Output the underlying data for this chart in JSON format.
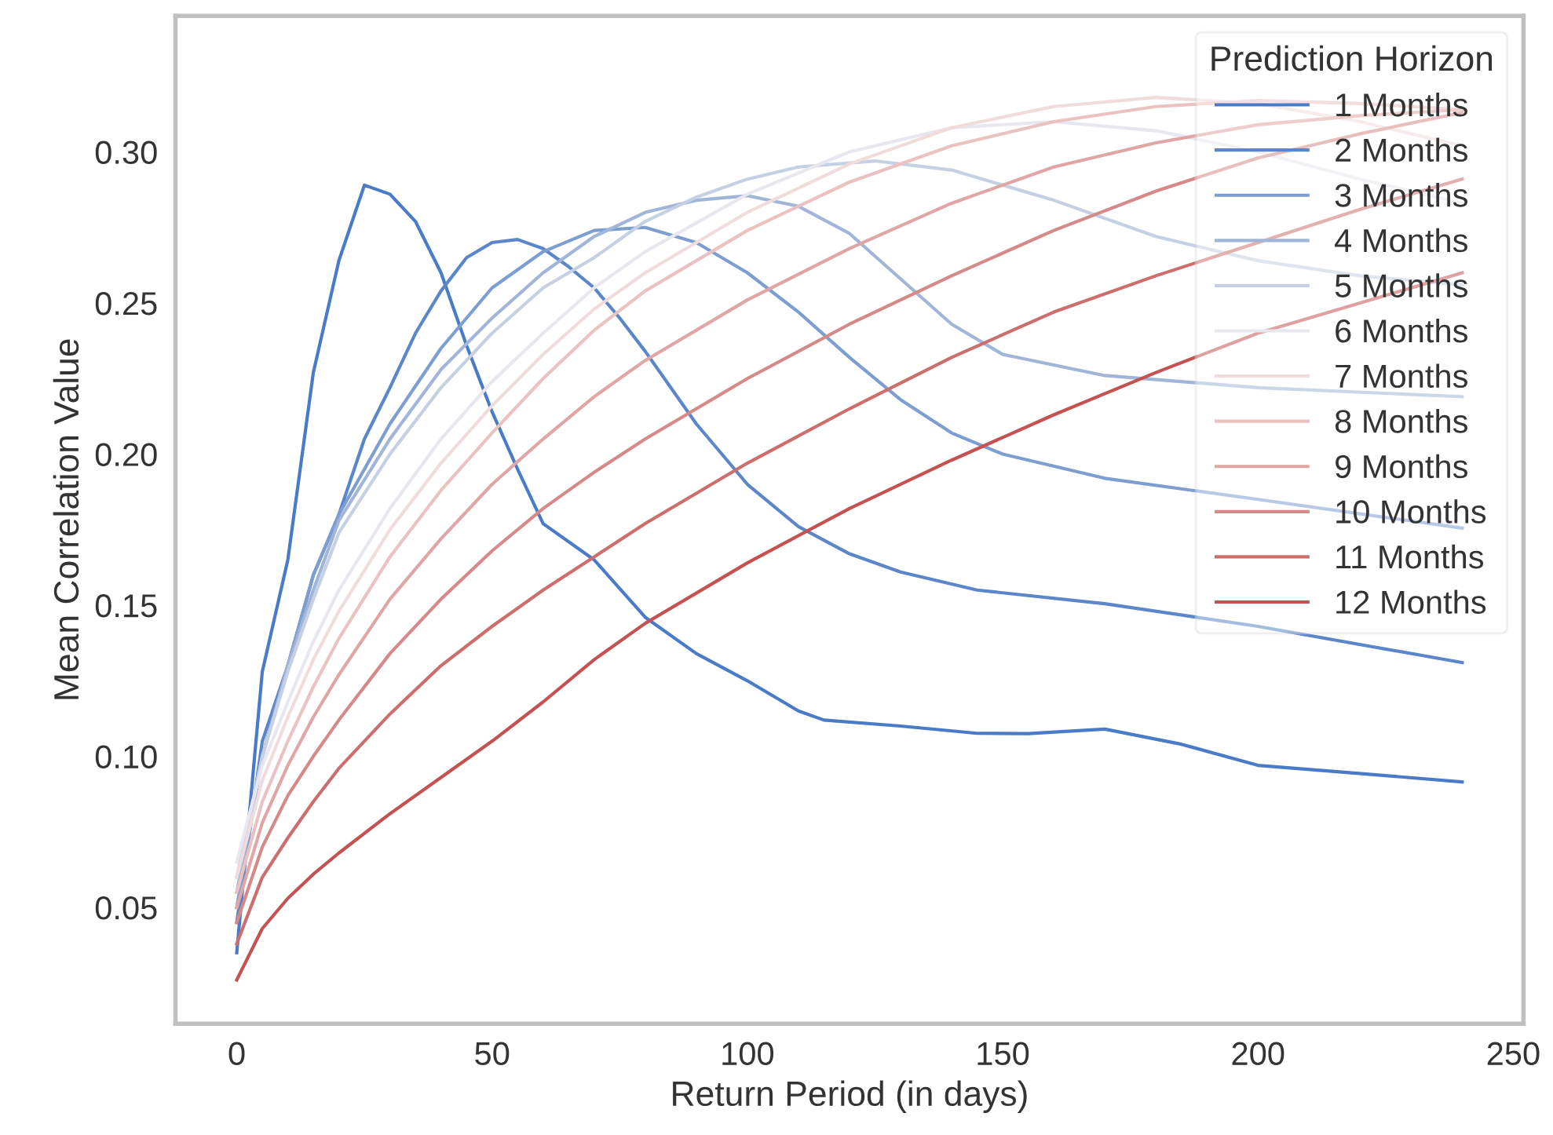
{
  "chart_data": {
    "type": "line",
    "xlabel": "Return Period (in days)",
    "ylabel": "Mean Correlation Value",
    "legend_title": "Prediction Horizon",
    "legend": "top right",
    "grid": false,
    "xlim": [
      -12,
      252
    ],
    "ylim": [
      0.0115,
      0.345
    ],
    "xticks": [
      0,
      50,
      100,
      150,
      200,
      250
    ],
    "yticks": [
      {
        "value": 0.05,
        "label": "0.05"
      },
      {
        "value": 0.1,
        "label": "0.10"
      },
      {
        "value": 0.15,
        "label": "0.15"
      },
      {
        "value": 0.2,
        "label": "0.20"
      },
      {
        "value": 0.25,
        "label": "0.25"
      },
      {
        "value": 0.3,
        "label": "0.30"
      }
    ],
    "series": [
      {
        "name": "1 Months",
        "color": "#4a7bc8",
        "x": [
          0,
          5,
          10,
          15,
          20,
          25,
          30,
          35,
          40,
          45,
          50,
          55,
          60,
          70,
          80,
          90,
          100,
          110,
          115,
          130,
          145,
          155,
          170,
          185,
          200,
          215,
          240
        ],
        "values": [
          0.035,
          0.128,
          0.165,
          0.227,
          0.264,
          0.289,
          0.286,
          0.277,
          0.26,
          0.236,
          0.214,
          0.195,
          0.177,
          0.165,
          0.146,
          0.134,
          0.125,
          0.115,
          0.112,
          0.11,
          0.1076,
          0.1075,
          0.109,
          0.104,
          0.097,
          0.095,
          0.0915
        ]
      },
      {
        "name": "2 Months",
        "color": "#5b86c9",
        "x": [
          0,
          5,
          10,
          15,
          20,
          25,
          30,
          35,
          40,
          45,
          50,
          55,
          60,
          65,
          70,
          75,
          80,
          85,
          90,
          100,
          110,
          120,
          130,
          145,
          170,
          200,
          240
        ],
        "values": [
          0.045,
          0.105,
          0.13,
          0.16,
          0.18,
          0.205,
          0.222,
          0.24,
          0.254,
          0.265,
          0.27,
          0.271,
          0.268,
          0.262,
          0.255,
          0.245,
          0.234,
          0.222,
          0.21,
          0.19,
          0.176,
          0.167,
          0.161,
          0.155,
          0.1505,
          0.143,
          0.131
        ]
      },
      {
        "name": "3 Months",
        "color": "#7d9ed0",
        "x": [
          0,
          5,
          10,
          15,
          20,
          30,
          40,
          50,
          60,
          70,
          80,
          90,
          100,
          110,
          120,
          130,
          140,
          150,
          170,
          200,
          240
        ],
        "values": [
          0.05,
          0.1,
          0.13,
          0.16,
          0.18,
          0.21,
          0.235,
          0.255,
          0.267,
          0.274,
          0.275,
          0.27,
          0.26,
          0.247,
          0.232,
          0.218,
          0.207,
          0.2,
          0.192,
          0.185,
          0.1755
        ]
      },
      {
        "name": "4 Months",
        "color": "#a1b5d8",
        "x": [
          0,
          5,
          10,
          15,
          20,
          30,
          40,
          50,
          60,
          70,
          80,
          90,
          100,
          110,
          120,
          130,
          140,
          150,
          170,
          200,
          240
        ],
        "values": [
          0.055,
          0.1,
          0.13,
          0.155,
          0.178,
          0.205,
          0.228,
          0.245,
          0.26,
          0.272,
          0.28,
          0.284,
          0.2855,
          0.282,
          0.273,
          0.258,
          0.243,
          0.233,
          0.226,
          0.222,
          0.219
        ]
      },
      {
        "name": "5 Months",
        "color": "#c6d0e3",
        "x": [
          0,
          5,
          10,
          15,
          20,
          30,
          40,
          50,
          60,
          70,
          80,
          90,
          100,
          110,
          125,
          140,
          160,
          180,
          200,
          220,
          240
        ],
        "values": [
          0.06,
          0.1,
          0.128,
          0.152,
          0.174,
          0.2,
          0.222,
          0.24,
          0.255,
          0.265,
          0.277,
          0.285,
          0.291,
          0.295,
          0.297,
          0.294,
          0.284,
          0.272,
          0.264,
          0.259,
          0.256
        ]
      },
      {
        "name": "6 Months",
        "color": "#e8e6ee",
        "x": [
          0,
          5,
          10,
          15,
          20,
          30,
          40,
          50,
          60,
          70,
          80,
          100,
          120,
          140,
          160,
          180,
          200,
          220,
          240
        ],
        "values": [
          0.065,
          0.097,
          0.118,
          0.138,
          0.155,
          0.182,
          0.205,
          0.224,
          0.24,
          0.255,
          0.267,
          0.286,
          0.3,
          0.308,
          0.31,
          0.307,
          0.3,
          0.291,
          0.283
        ]
      },
      {
        "name": "7 Months",
        "color": "#f1dcdc",
        "x": [
          0,
          5,
          10,
          15,
          20,
          30,
          40,
          50,
          60,
          70,
          80,
          100,
          120,
          140,
          160,
          180,
          200,
          220,
          240
        ],
        "values": [
          0.06,
          0.092,
          0.113,
          0.132,
          0.148,
          0.175,
          0.197,
          0.216,
          0.233,
          0.248,
          0.26,
          0.28,
          0.296,
          0.308,
          0.315,
          0.318,
          0.316,
          0.31,
          0.302
        ]
      },
      {
        "name": "8 Months",
        "color": "#eac2c1",
        "x": [
          0,
          5,
          10,
          15,
          20,
          30,
          40,
          50,
          60,
          70,
          80,
          100,
          120,
          140,
          160,
          180,
          200,
          220,
          240
        ],
        "values": [
          0.055,
          0.085,
          0.105,
          0.123,
          0.139,
          0.166,
          0.188,
          0.207,
          0.225,
          0.241,
          0.254,
          0.274,
          0.29,
          0.302,
          0.31,
          0.315,
          0.317,
          0.316,
          0.314
        ]
      },
      {
        "name": "9 Months",
        "color": "#dfa6a5",
        "x": [
          0,
          5,
          10,
          15,
          20,
          30,
          40,
          50,
          60,
          70,
          80,
          100,
          120,
          140,
          160,
          180,
          200,
          220,
          240
        ],
        "values": [
          0.05,
          0.078,
          0.097,
          0.113,
          0.127,
          0.152,
          0.172,
          0.19,
          0.205,
          0.219,
          0.231,
          0.251,
          0.268,
          0.283,
          0.295,
          0.303,
          0.309,
          0.312,
          0.314
        ]
      },
      {
        "name": "10 Months",
        "color": "#d58a89",
        "x": [
          0,
          5,
          10,
          15,
          20,
          30,
          40,
          50,
          60,
          70,
          80,
          100,
          120,
          140,
          160,
          180,
          200,
          220,
          240
        ],
        "values": [
          0.045,
          0.07,
          0.087,
          0.1,
          0.112,
          0.134,
          0.152,
          0.168,
          0.182,
          0.194,
          0.205,
          0.225,
          0.243,
          0.259,
          0.274,
          0.287,
          0.298,
          0.306,
          0.313
        ]
      },
      {
        "name": "11 Months",
        "color": "#cc6e6d",
        "x": [
          0,
          5,
          10,
          15,
          20,
          30,
          40,
          50,
          60,
          70,
          80,
          100,
          120,
          140,
          160,
          180,
          200,
          220,
          240
        ],
        "values": [
          0.038,
          0.06,
          0.073,
          0.085,
          0.096,
          0.114,
          0.13,
          0.143,
          0.155,
          0.166,
          0.177,
          0.197,
          0.215,
          0.232,
          0.247,
          0.259,
          0.27,
          0.281,
          0.291
        ]
      },
      {
        "name": "12 Months",
        "color": "#c45252",
        "x": [
          0,
          5,
          10,
          15,
          20,
          30,
          40,
          50,
          60,
          70,
          80,
          90,
          100,
          120,
          140,
          160,
          180,
          200,
          220,
          240
        ],
        "values": [
          0.026,
          0.043,
          0.053,
          0.061,
          0.068,
          0.081,
          0.093,
          0.105,
          0.118,
          0.132,
          0.144,
          0.154,
          0.164,
          0.182,
          0.198,
          0.213,
          0.227,
          0.24,
          0.25,
          0.26
        ]
      }
    ]
  }
}
